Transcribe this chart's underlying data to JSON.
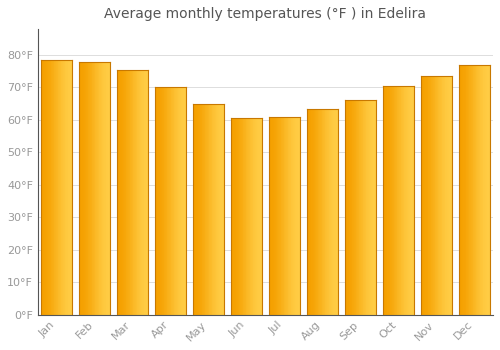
{
  "title": "Average monthly temperatures (°F ) in Edelira",
  "months": [
    "Jan",
    "Feb",
    "Mar",
    "Apr",
    "May",
    "Jun",
    "Jul",
    "Aug",
    "Sep",
    "Oct",
    "Nov",
    "Dec"
  ],
  "values": [
    78.5,
    78.0,
    75.5,
    70.0,
    65.0,
    60.5,
    61.0,
    63.5,
    66.0,
    70.5,
    73.5,
    77.0
  ],
  "bar_color_center": "#FFCC44",
  "bar_color_edge": "#F5A000",
  "background_color": "#ffffff",
  "plot_bg_color": "#ffffff",
  "grid_color": "#dddddd",
  "text_color": "#999999",
  "ylim": [
    0,
    88
  ],
  "yticks": [
    0,
    10,
    20,
    30,
    40,
    50,
    60,
    70,
    80
  ],
  "ytick_labels": [
    "0°F",
    "10°F",
    "20°F",
    "30°F",
    "40°F",
    "50°F",
    "60°F",
    "70°F",
    "80°F"
  ],
  "title_fontsize": 10,
  "tick_fontsize": 8,
  "bar_width": 0.82
}
